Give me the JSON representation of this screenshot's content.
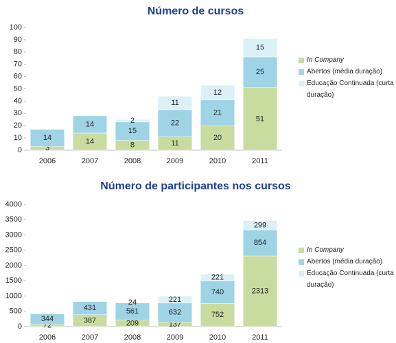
{
  "chart_data": [
    {
      "type": "bar",
      "stacked": true,
      "title": "Número de cursos",
      "categories": [
        "2006",
        "2007",
        "2008",
        "2009",
        "2010",
        "2011"
      ],
      "series": [
        {
          "name": "In Company",
          "color": "#c9dc9f",
          "values": [
            3,
            14,
            8,
            11,
            20,
            51
          ]
        },
        {
          "name": "Abertos (média duração)",
          "color": "#9fd3e6",
          "values": [
            14,
            14,
            15,
            22,
            21,
            25
          ]
        },
        {
          "name": "Educação Continuada (curta duração)",
          "color": "#dcf0f8",
          "values": [
            null,
            null,
            2,
            11,
            12,
            15
          ]
        }
      ],
      "ylim": [
        0,
        100
      ],
      "yticks": [
        0,
        10,
        20,
        30,
        40,
        50,
        60,
        70,
        80,
        90,
        100
      ]
    },
    {
      "type": "bar",
      "stacked": true,
      "title": "Número de participantes nos cursos",
      "categories": [
        "2006",
        "2007",
        "2008",
        "2009",
        "2010",
        "2011"
      ],
      "series": [
        {
          "name": "In Company",
          "color": "#c9dc9f",
          "values": [
            72,
            387,
            209,
            137,
            752,
            2313
          ]
        },
        {
          "name": "Abertos (média duração)",
          "color": "#9fd3e6",
          "values": [
            344,
            431,
            561,
            632,
            740,
            854
          ]
        },
        {
          "name": "Educação Continuada (curta duração)",
          "color": "#dcf0f8",
          "values": [
            null,
            null,
            24,
            221,
            221,
            299
          ]
        }
      ],
      "ylim": [
        0,
        4000
      ],
      "yticks": [
        0,
        500,
        1000,
        1500,
        2000,
        2500,
        3000,
        3500,
        4000
      ]
    }
  ]
}
